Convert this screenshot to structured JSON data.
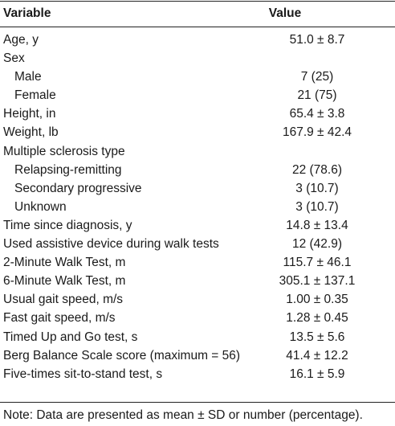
{
  "table": {
    "headers": {
      "variable": "Variable",
      "value": "Value"
    },
    "rows": [
      {
        "label": "Age, y",
        "value": "51.0 ± 8.7",
        "indent": false
      },
      {
        "label": "Sex",
        "value": "",
        "indent": false
      },
      {
        "label": "Male",
        "value": "7 (25)",
        "indent": true
      },
      {
        "label": "Female",
        "value": "21 (75)",
        "indent": true
      },
      {
        "label": "Height, in",
        "value": "65.4 ± 3.8",
        "indent": false
      },
      {
        "label": "Weight, lb",
        "value": "167.9 ± 42.4",
        "indent": false
      },
      {
        "label": "Multiple sclerosis type",
        "value": "",
        "indent": false
      },
      {
        "label": "Relapsing-remitting",
        "value": "22 (78.6)",
        "indent": true
      },
      {
        "label": "Secondary progressive",
        "value": "3 (10.7)",
        "indent": true
      },
      {
        "label": "Unknown",
        "value": "3 (10.7)",
        "indent": true
      },
      {
        "label": "Time since diagnosis, y",
        "value": "14.8 ± 13.4",
        "indent": false
      },
      {
        "label": "Used assistive device during walk tests",
        "value": "12 (42.9)",
        "indent": false
      },
      {
        "label": "2-Minute Walk Test, m",
        "value": "115.7 ± 46.1",
        "indent": false
      },
      {
        "label": "6-Minute Walk Test, m",
        "value": "305.1 ± 137.1",
        "indent": false
      },
      {
        "label": "Usual gait speed, m/s",
        "value": "1.00 ± 0.35",
        "indent": false
      },
      {
        "label": "Fast gait speed, m/s",
        "value": "1.28 ± 0.45",
        "indent": false
      },
      {
        "label": "Timed Up and Go test, s",
        "value": "13.5 ± 5.6",
        "indent": false
      },
      {
        "label": "Berg Balance Scale score (maximum = 56)",
        "value": "41.4 ± 12.2",
        "indent": false
      },
      {
        "label": "Five-times sit-to-stand test, s",
        "value": "16.1 ± 5.9",
        "indent": false
      }
    ],
    "note": "Note: Data are presented as mean ± SD or number (percentage)."
  }
}
